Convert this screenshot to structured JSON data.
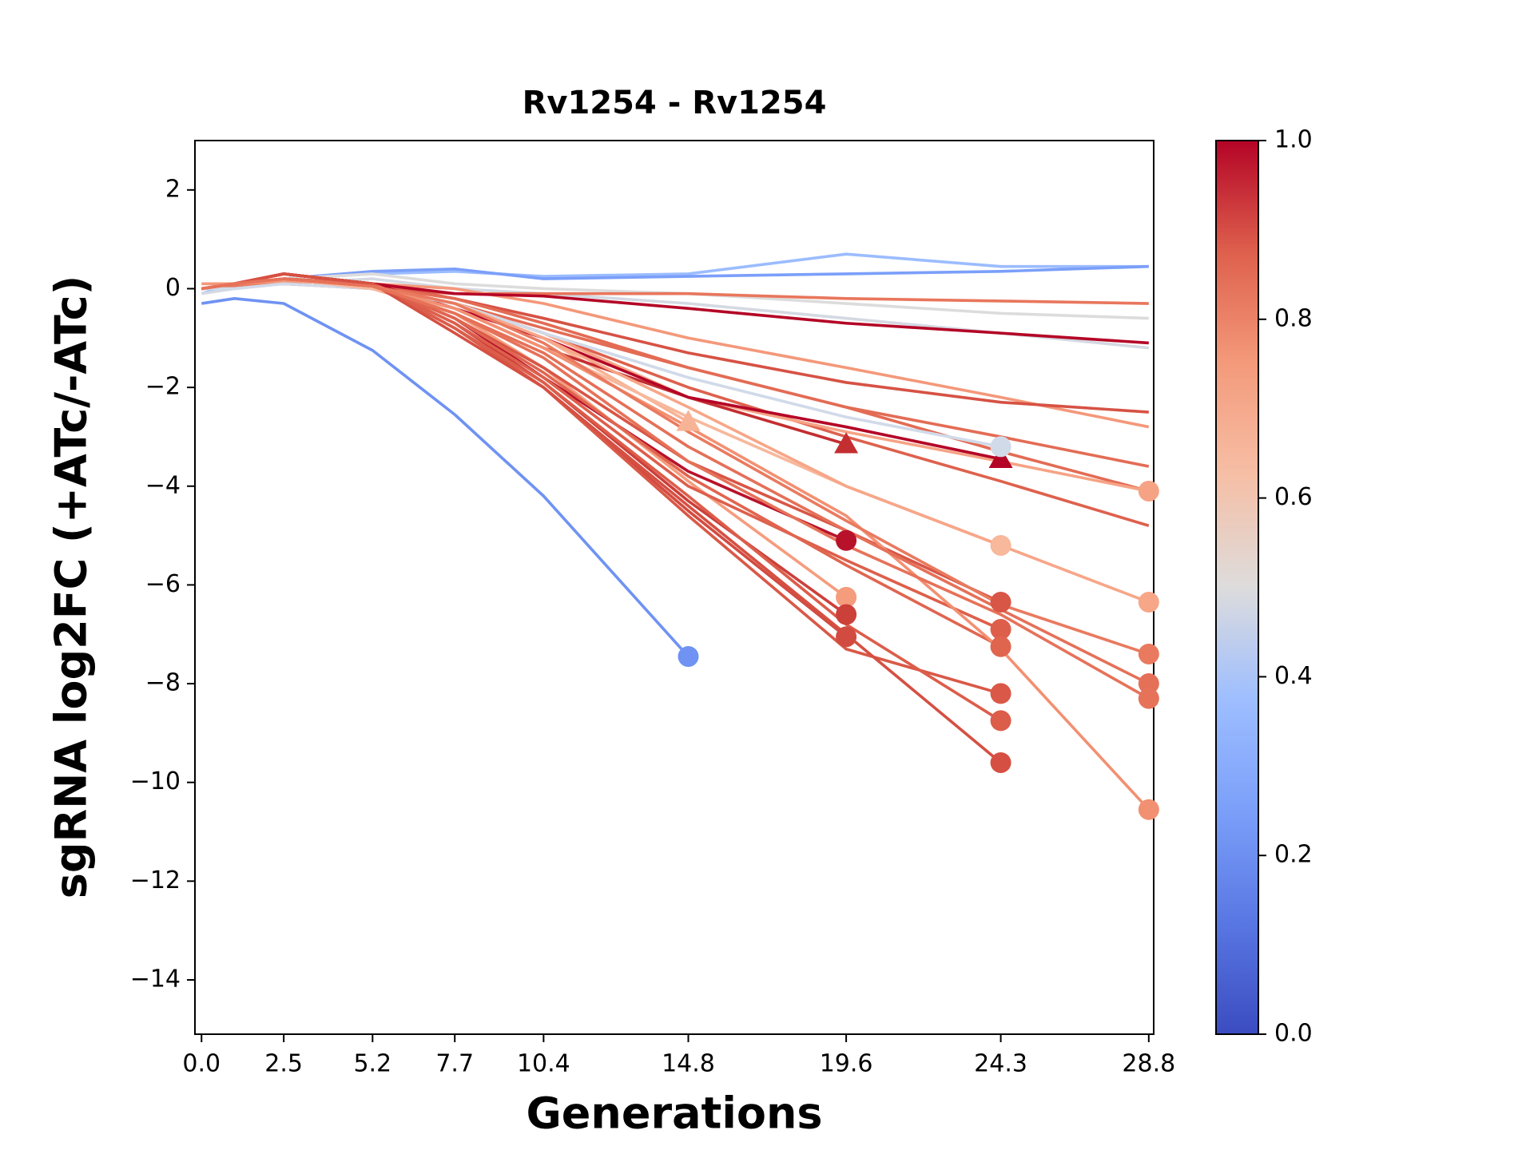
{
  "chart_data": {
    "type": "line",
    "title": "Rv1254 - Rv1254",
    "xlabel": "Generations",
    "ylabel": "sgRNA log2FC (+ATc/-ATc)",
    "x": [
      0,
      1.0,
      2.5,
      5.2,
      7.7,
      10.4,
      14.8,
      19.6,
      24.3,
      28.8
    ],
    "xlim": [
      -0.2,
      28.95
    ],
    "xticks": [
      {
        "value": 0,
        "label": "0.0"
      },
      2.5,
      5.2,
      7.7,
      10.4,
      14.8,
      19.6,
      24.3,
      28.8
    ],
    "ylim": [
      -15.1,
      3
    ],
    "yticks": [
      2,
      0,
      {
        "value": -2,
        "label": "−2"
      },
      {
        "value": -4,
        "label": "−4"
      },
      {
        "value": -6,
        "label": "−6"
      },
      {
        "value": -8,
        "label": "−8"
      },
      {
        "value": -10,
        "label": "−10"
      },
      {
        "value": -12,
        "label": "−12"
      },
      {
        "value": -14,
        "label": "−14"
      }
    ],
    "colorbar": {
      "lim": [
        0,
        1
      ],
      "ticks": [
        {
          "value": 0,
          "label": "0.0"
        },
        0.2,
        0.4,
        0.6,
        0.8,
        {
          "value": 1,
          "label": "1.0"
        }
      ]
    },
    "series": [
      {
        "color": "#6f92f3",
        "marker": "circle",
        "values": [
          -0.3,
          -0.2,
          -0.3,
          -1.25,
          -2.55,
          -4.2,
          -7.45,
          null,
          null,
          null
        ]
      },
      {
        "color": "#9bbcff",
        "values": [
          -0.1,
          0.1,
          0.2,
          0.3,
          0.35,
          0.25,
          0.3,
          0.7,
          0.45,
          0.45
        ]
      },
      {
        "color": "#7b9ff9",
        "values": [
          0,
          0.1,
          0.2,
          0.35,
          0.4,
          0.2,
          0.25,
          0.3,
          0.35,
          0.45
        ]
      },
      {
        "color": "#dddcdc",
        "values": [
          0,
          0.05,
          0.2,
          0.3,
          0.1,
          0,
          -0.1,
          -0.3,
          -0.5,
          -0.6
        ]
      },
      {
        "color": "#d4d9e2",
        "values": [
          -0.1,
          0,
          0.1,
          0.2,
          0,
          -0.1,
          -0.3,
          -0.6,
          -0.9,
          -1.2
        ]
      },
      {
        "color": "#e8765c",
        "values": [
          0,
          0.05,
          0.1,
          0,
          -0.1,
          -0.1,
          -0.1,
          -0.2,
          -0.25,
          -0.3
        ]
      },
      {
        "color": "#f4987a",
        "values": [
          0.1,
          0.1,
          0.15,
          0.1,
          0,
          -0.3,
          -1.0,
          -1.6,
          -2.2,
          -2.8
        ]
      },
      {
        "color": "#d65244",
        "values": [
          0,
          0.1,
          0.2,
          0.1,
          -0.2,
          -0.6,
          -1.3,
          -1.9,
          -2.3,
          -2.5
        ]
      },
      {
        "color": "#e36c55",
        "values": [
          0,
          0.1,
          0.2,
          0,
          -0.3,
          -0.8,
          -1.6,
          -2.4,
          -3.0,
          -3.6
        ]
      },
      {
        "color": "#de614d",
        "values": [
          0,
          0.1,
          0.2,
          0.05,
          -0.3,
          -0.9,
          -2.0,
          -3.0,
          -3.9,
          -4.8
        ]
      },
      {
        "color": "#e36b54",
        "values": [
          0,
          0.1,
          0.2,
          0.05,
          -0.2,
          -0.7,
          -1.6,
          -2.4,
          -3.3,
          -4.1
        ]
      },
      {
        "color": "#f6a385",
        "marker": "circle",
        "values": [
          0,
          0.1,
          0.2,
          0,
          -0.3,
          -0.9,
          -2.2,
          -2.9,
          -3.5,
          -4.1
        ]
      },
      {
        "color": "#f7b396",
        "marker": "triangle",
        "values": [
          0,
          0.1,
          0.2,
          0,
          -0.3,
          -1.0,
          -2.7,
          null,
          null,
          null
        ]
      },
      {
        "color": "#c32e31",
        "marker": "triangle",
        "values": [
          0,
          0.1,
          0.2,
          0,
          -0.4,
          -1.2,
          -2.2,
          -3.15,
          null,
          null
        ]
      },
      {
        "color": "#b40426",
        "marker": "triangle",
        "values": [
          0,
          0.1,
          0.3,
          0.1,
          -0.4,
          -1.0,
          -2.2,
          -2.8,
          -3.45,
          null
        ]
      },
      {
        "color": "#d1dae9",
        "marker": "circle",
        "values": [
          0,
          0,
          0.1,
          0,
          -0.3,
          -0.9,
          -1.8,
          -2.6,
          -3.2,
          null
        ]
      },
      {
        "color": "#b40426",
        "values": [
          0,
          0.1,
          0.3,
          0.1,
          -0.1,
          -0.15,
          -0.4,
          -0.7,
          -0.9,
          -1.1
        ]
      },
      {
        "color": "#b8122a",
        "marker": "circle",
        "values": [
          0,
          0.1,
          0.3,
          0.1,
          -0.6,
          -1.8,
          -3.7,
          -5.1,
          null,
          null
        ]
      },
      {
        "color": "#f59c7d",
        "marker": "circle",
        "values": [
          0,
          0.1,
          0.2,
          0,
          -0.5,
          -1.6,
          -3.9,
          -6.25,
          null,
          null
        ]
      },
      {
        "color": "#cc403a",
        "marker": "circle",
        "values": [
          0,
          0.1,
          0.3,
          0.1,
          -0.7,
          -1.9,
          -4.3,
          -6.6,
          null,
          null
        ]
      },
      {
        "color": "#d24b40",
        "marker": "circle",
        "values": [
          0,
          0.1,
          0.3,
          0.1,
          -0.8,
          -2.0,
          -4.5,
          -7.05,
          null,
          null
        ]
      },
      {
        "color": "#f7b89c",
        "marker": "circle",
        "values": [
          0,
          0.1,
          0.2,
          0,
          -0.4,
          -1.2,
          -2.6,
          -4.0,
          -5.2,
          null
        ]
      },
      {
        "color": "#d85646",
        "marker": "circle",
        "values": [
          0,
          0.1,
          0.3,
          0.1,
          -0.6,
          -1.6,
          -3.5,
          -4.9,
          -6.35,
          null
        ]
      },
      {
        "color": "#dd5f4b",
        "marker": "circle",
        "values": [
          0,
          0.1,
          0.3,
          0.1,
          -0.7,
          -1.8,
          -4.0,
          -5.5,
          -6.9,
          null
        ]
      },
      {
        "color": "#e0654f",
        "marker": "circle",
        "values": [
          0,
          0.1,
          0.2,
          0.1,
          -0.6,
          -1.7,
          -3.8,
          -5.6,
          -7.25,
          null
        ]
      },
      {
        "color": "#d95847",
        "marker": "circle",
        "values": [
          0,
          0.1,
          0.3,
          0.1,
          -0.8,
          -2.0,
          -4.6,
          -7.3,
          -8.2,
          null
        ]
      },
      {
        "color": "#dc5d4a",
        "marker": "circle",
        "values": [
          0,
          0.1,
          0.3,
          0.1,
          -0.8,
          -1.9,
          -4.2,
          -6.8,
          -8.75,
          null
        ]
      },
      {
        "color": "#d55042",
        "marker": "circle",
        "values": [
          0,
          0.1,
          0.3,
          0.1,
          -0.9,
          -2.0,
          -4.4,
          -7.0,
          -9.6,
          null
        ]
      },
      {
        "color": "#f7a688",
        "marker": "circle",
        "values": [
          0,
          0.1,
          0.2,
          0.05,
          -0.3,
          -1.0,
          -2.4,
          -4.0,
          -5.2,
          -6.35
        ]
      },
      {
        "color": "#f29072",
        "marker": "circle",
        "values": [
          0,
          0.1,
          0.2,
          0.05,
          -0.4,
          -1.2,
          -2.8,
          -4.6,
          -7.3,
          -10.55
        ]
      },
      {
        "color": "#e97a5f",
        "marker": "circle",
        "values": [
          0,
          0.1,
          0.2,
          0.05,
          -0.3,
          -1.1,
          -2.9,
          -4.7,
          -6.4,
          -7.4
        ]
      },
      {
        "color": "#e57058",
        "marker": "circle",
        "values": [
          0,
          0.1,
          0.2,
          0.05,
          -0.5,
          -1.3,
          -3.2,
          -4.9,
          -6.5,
          -8.0
        ]
      },
      {
        "color": "#e67259",
        "marker": "circle",
        "values": [
          0,
          0.1,
          0.2,
          0.05,
          -0.5,
          -1.4,
          -3.5,
          -5.2,
          -6.6,
          -8.3
        ]
      }
    ]
  }
}
